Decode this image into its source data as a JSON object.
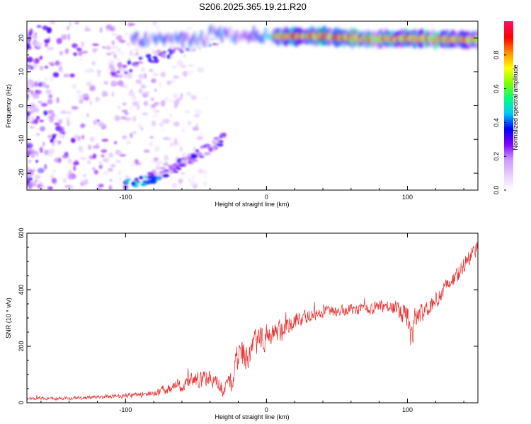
{
  "figure": {
    "title": "S206.2025.365.19.21.R20"
  },
  "chart_data": [
    {
      "type": "heatmap",
      "title": "",
      "xlabel": "Height of straight line (km)",
      "ylabel": "Frequency (Hz)",
      "xlim": [
        -170,
        150
      ],
      "ylim": [
        -25,
        25
      ],
      "xticks": [
        -100,
        0,
        100
      ],
      "yticks": [
        -20,
        -10,
        0,
        10,
        20
      ],
      "colorbar": {
        "label": "Normalized spectral amplitude",
        "range": [
          0,
          1
        ],
        "ticks": [
          0.0,
          0.2,
          0.4,
          0.6,
          0.8
        ],
        "colormap": [
          "#ffffff",
          "#e6ccff",
          "#cc99ff",
          "#8000ff",
          "#0000ff",
          "#00c8ff",
          "#00ff80",
          "#80ff00",
          "#ffff00",
          "#ff9000",
          "#ff0000",
          "#ff1060"
        ]
      },
      "ridge": {
        "description_points": [
          [
            -40,
            22
          ],
          [
            -20,
            20.5
          ],
          [
            -10,
            21
          ],
          [
            0,
            20.5
          ],
          [
            20,
            20.5
          ],
          [
            40,
            20.5
          ],
          [
            60,
            20
          ],
          [
            80,
            19.5
          ],
          [
            100,
            20
          ],
          [
            120,
            19.5
          ],
          [
            150,
            19.5
          ]
        ],
        "peak_amplitude": 1.0
      },
      "scatter_region_x": [
        -170,
        -20
      ],
      "lower_arc_x": [
        -100,
        -30
      ],
      "grid": false
    },
    {
      "type": "line",
      "title": "",
      "xlabel": "Height of straight line (km)",
      "ylabel": "SNR (10 * v/v)",
      "xlim": [
        -170,
        150
      ],
      "ylim": [
        0,
        600
      ],
      "xticks": [
        -100,
        0,
        100
      ],
      "yticks": [
        0,
        200,
        400,
        600
      ],
      "series": [
        {
          "color": "#e8302e",
          "x": [
            -170,
            -150,
            -130,
            -110,
            -90,
            -80,
            -70,
            -60,
            -50,
            -40,
            -30,
            -25,
            -20,
            -15,
            -10,
            -5,
            0,
            5,
            10,
            15,
            20,
            25,
            30,
            40,
            50,
            60,
            70,
            80,
            85,
            90,
            95,
            100,
            103,
            105,
            110,
            115,
            120,
            125,
            130,
            135,
            140,
            145,
            150
          ],
          "y": [
            15,
            16,
            18,
            22,
            28,
            35,
            50,
            65,
            80,
            95,
            40,
            75,
            170,
            160,
            200,
            215,
            235,
            255,
            250,
            275,
            290,
            300,
            310,
            320,
            325,
            330,
            330,
            335,
            340,
            335,
            320,
            300,
            210,
            300,
            320,
            330,
            360,
            395,
            420,
            450,
            490,
            520,
            560
          ],
          "noise": [
            8,
            8,
            8,
            10,
            12,
            15,
            25,
            30,
            35,
            40,
            30,
            45,
            70,
            70,
            65,
            60,
            55,
            55,
            50,
            45,
            40,
            35,
            30,
            25,
            25,
            25,
            25,
            25,
            30,
            35,
            45,
            60,
            60,
            45,
            40,
            40,
            40,
            40,
            40,
            40,
            40,
            40,
            40
          ]
        }
      ],
      "grid": false
    }
  ]
}
